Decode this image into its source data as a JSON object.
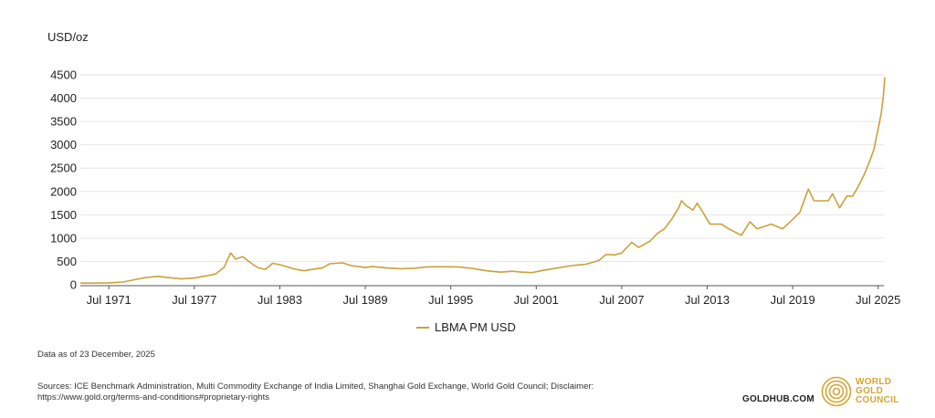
{
  "chart_data": {
    "type": "line",
    "ylabel": "USD/oz",
    "xlabel": "",
    "ylim": [
      0,
      4500
    ],
    "yticks": [
      0,
      500,
      1000,
      1500,
      2000,
      2500,
      3000,
      3500,
      4000,
      4500
    ],
    "xlim": [
      1969.5,
      2025.9
    ],
    "xticks": [
      {
        "year": 1971.5,
        "label": "Jul 1971"
      },
      {
        "year": 1977.5,
        "label": "Jul 1977"
      },
      {
        "year": 1983.5,
        "label": "Jul 1983"
      },
      {
        "year": 1989.5,
        "label": "Jul 1989"
      },
      {
        "year": 1995.5,
        "label": "Jul 1995"
      },
      {
        "year": 2001.5,
        "label": "Jul 2001"
      },
      {
        "year": 2007.5,
        "label": "Jul 2007"
      },
      {
        "year": 2013.5,
        "label": "Jul 2013"
      },
      {
        "year": 2019.5,
        "label": "Jul 2019"
      },
      {
        "year": 2025.5,
        "label": "Jul 2025"
      }
    ],
    "grid": true,
    "series": [
      {
        "name": "LBMA PM USD",
        "color": "#c9a23a",
        "x": [
          1969.5,
          1970.5,
          1971.5,
          1972.5,
          1973.0,
          1973.5,
          1974.0,
          1974.9,
          1975.5,
          1976.6,
          1977.5,
          1978.5,
          1979.0,
          1979.6,
          1980.05,
          1980.4,
          1980.9,
          1981.5,
          1982.0,
          1982.5,
          1983.0,
          1983.5,
          1984.5,
          1985.2,
          1985.8,
          1986.5,
          1987.0,
          1987.9,
          1988.5,
          1989.5,
          1990.0,
          1991.0,
          1992.0,
          1993.0,
          1993.7,
          1994.5,
          1995.5,
          1996.1,
          1997.0,
          1998.0,
          1999.0,
          1999.8,
          2000.5,
          2001.2,
          2002.0,
          2003.0,
          2004.0,
          2005.0,
          2005.9,
          2006.4,
          2007.0,
          2007.5,
          2008.2,
          2008.7,
          2009.5,
          2010.0,
          2010.5,
          2011.0,
          2011.5,
          2011.7,
          2012.0,
          2012.5,
          2012.8,
          2013.3,
          2013.7,
          2014.5,
          2015.0,
          2015.9,
          2016.5,
          2017.0,
          2018.0,
          2018.8,
          2019.5,
          2020.0,
          2020.6,
          2021.0,
          2021.5,
          2022.0,
          2022.3,
          2022.8,
          2023.3,
          2023.7,
          2024.0,
          2024.5,
          2024.9,
          2025.2,
          2025.5,
          2025.7,
          2025.85,
          2025.97
        ],
        "values": [
          35,
          36,
          42,
          58,
          90,
          120,
          150,
          180,
          160,
          125,
          145,
          200,
          230,
          380,
          680,
          550,
          600,
          460,
          360,
          330,
          460,
          430,
          340,
          300,
          330,
          360,
          450,
          470,
          410,
          370,
          390,
          360,
          345,
          355,
          380,
          385,
          385,
          380,
          350,
          300,
          270,
          290,
          270,
          260,
          310,
          360,
          410,
          440,
          520,
          650,
          640,
          680,
          910,
          800,
          940,
          1100,
          1200,
          1400,
          1650,
          1800,
          1700,
          1600,
          1750,
          1500,
          1300,
          1300,
          1200,
          1060,
          1350,
          1200,
          1300,
          1200,
          1400,
          1550,
          2050,
          1800,
          1800,
          1800,
          1950,
          1650,
          1900,
          1900,
          2050,
          2350,
          2650,
          2900,
          3350,
          3650,
          4000,
          4450
        ]
      }
    ]
  },
  "unit_label": "USD/oz",
  "legend": {
    "label": "LBMA PM USD"
  },
  "as_of": "Data as of 23 December, 2025",
  "sources": "Sources: ICE Benchmark Administration, Multi Commodity Exchange of India Limited, Shanghai Gold Exchange, World Gold Council; Disclaimer: https://www.gold.org/terms-and-conditions#proprietary-rights",
  "goldhub": "GOLDHUB.COM",
  "logo": {
    "line1": "WORLD",
    "line2": "GOLD",
    "line3": "COUNCIL",
    "color": "#d4a534"
  }
}
